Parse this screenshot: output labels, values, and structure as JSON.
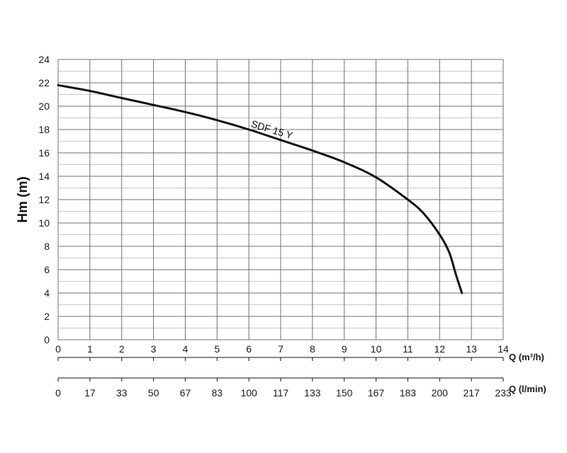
{
  "chart_data": {
    "type": "line",
    "title": "",
    "ylabel": "Hm (m)",
    "xlabel": "Q (m³/h)",
    "xlabel_secondary": "Q (l/min)",
    "xlim": [
      0,
      14
    ],
    "ylim": [
      0,
      24
    ],
    "x_ticks": [
      "0",
      "1",
      "2",
      "3",
      "4",
      "5",
      "6",
      "7",
      "8",
      "9",
      "10",
      "11",
      "12",
      "13",
      "14"
    ],
    "x_ticks_secondary": [
      "0",
      "17",
      "33",
      "50",
      "67",
      "83",
      "100",
      "117",
      "133",
      "150",
      "167",
      "183",
      "200",
      "217",
      "233"
    ],
    "y_ticks": [
      "0",
      "2",
      "4",
      "6",
      "8",
      "10",
      "12",
      "14",
      "16",
      "18",
      "20",
      "22",
      "24"
    ],
    "grid": true,
    "series": [
      {
        "name": "SDF 15 Y",
        "color": "#111111",
        "x": [
          0,
          1,
          2,
          3,
          4,
          5,
          6,
          7,
          8,
          9,
          10,
          11,
          11.5,
          12,
          12.3,
          12.5,
          12.7
        ],
        "y": [
          21.8,
          21.3,
          20.7,
          20.1,
          19.5,
          18.8,
          18.0,
          17.1,
          16.2,
          15.2,
          13.9,
          12.0,
          10.8,
          9.0,
          7.5,
          5.7,
          4.0
        ]
      }
    ]
  }
}
